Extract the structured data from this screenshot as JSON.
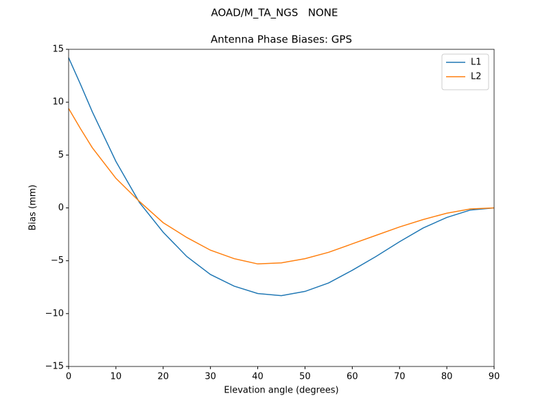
{
  "chart_data": {
    "type": "line",
    "suptitle": "AOAD/M_TA_NGS   NONE",
    "title": "Antenna Phase Biases: GPS",
    "xlabel": "Elevation angle (degrees)",
    "ylabel": "Bias (mm)",
    "x": [
      0,
      2.5,
      5,
      10,
      15,
      20,
      25,
      30,
      35,
      40,
      45,
      50,
      55,
      60,
      65,
      70,
      75,
      80,
      85,
      90
    ],
    "series": [
      {
        "name": "L1",
        "color": "#1f77b4",
        "values": [
          14.2,
          11.7,
          9.1,
          4.4,
          0.5,
          -2.3,
          -4.6,
          -6.3,
          -7.4,
          -8.1,
          -8.3,
          -7.9,
          -7.1,
          -5.9,
          -4.6,
          -3.2,
          -1.9,
          -0.9,
          -0.2,
          0
        ]
      },
      {
        "name": "L2",
        "color": "#ff7f0e",
        "values": [
          9.4,
          7.5,
          5.7,
          2.8,
          0.6,
          -1.4,
          -2.8,
          -4.0,
          -4.8,
          -5.3,
          -5.2,
          -4.8,
          -4.2,
          -3.4,
          -2.6,
          -1.8,
          -1.1,
          -0.5,
          -0.1,
          0
        ]
      }
    ],
    "xlim": [
      0,
      90
    ],
    "xticks": [
      0,
      10,
      20,
      30,
      40,
      50,
      60,
      70,
      80,
      90
    ],
    "ylim": [
      -15,
      15
    ],
    "yticks": [
      {
        "value": -15,
        "label": "−15"
      },
      {
        "value": -10,
        "label": "−10"
      },
      {
        "value": -5,
        "label": "−5"
      },
      0,
      5,
      10,
      15
    ],
    "legend": "upper right"
  }
}
